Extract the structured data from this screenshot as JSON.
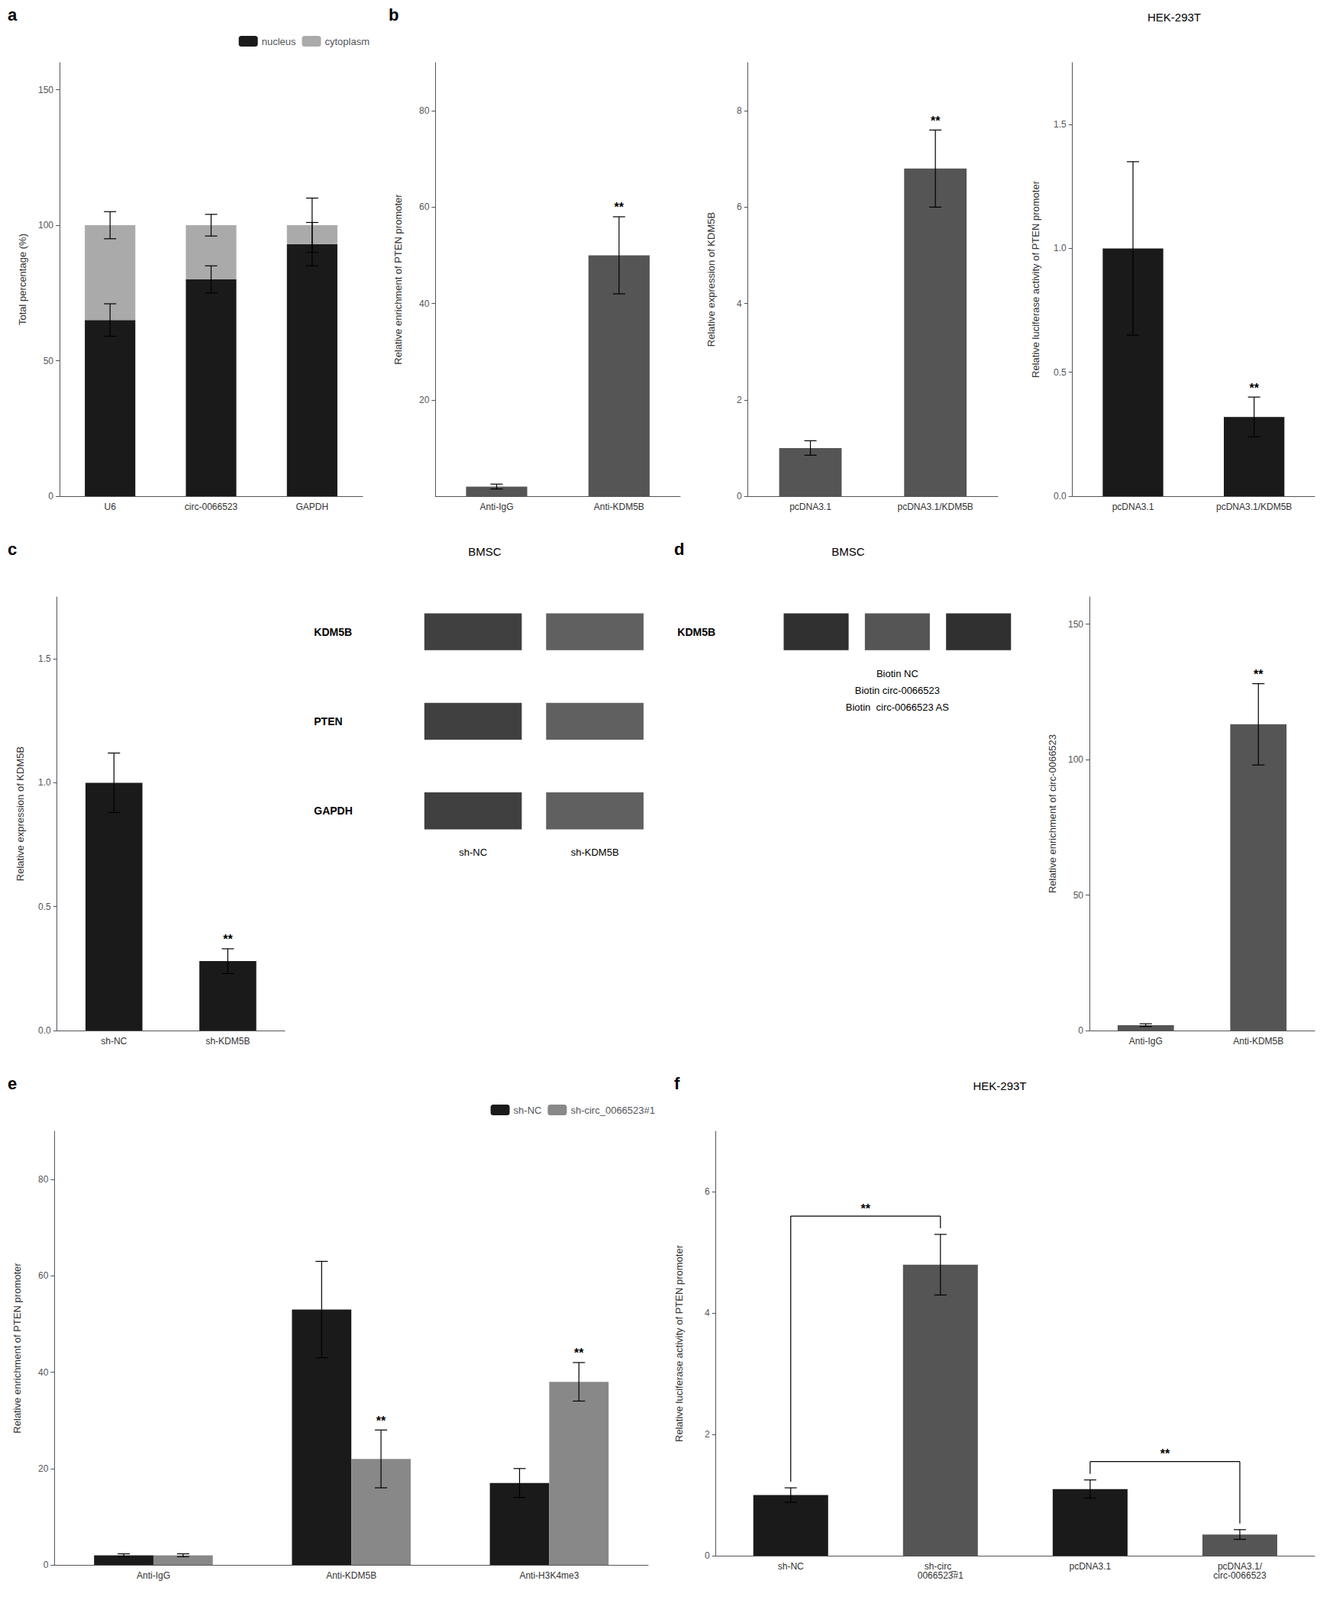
{
  "chart_data": [
    {
      "type": "bar",
      "stacked": true,
      "categories": [
        "U6",
        "circ-0066523",
        "GAPDH"
      ],
      "series": [
        {
          "name": "nucleus",
          "color": "#1a1a1a",
          "values": [
            65,
            80,
            93
          ],
          "errors": [
            6,
            5,
            8
          ]
        },
        {
          "name": "cytoplasm",
          "color": "#aaaaaa",
          "values": [
            35,
            20,
            7
          ],
          "errors": [
            5,
            4,
            10
          ]
        }
      ],
      "ylabel": "Total percentage (%)",
      "ylim": [
        0,
        160
      ],
      "yticks": [
        0,
        50,
        100,
        150
      ],
      "legend": "upper right",
      "grid": false,
      "annotations": [
        {
          "text": "a"
        }
      ]
    },
    {
      "type": "bar",
      "categories": [
        "Anti-IgG",
        "Anti-KDM5B"
      ],
      "values": [
        2.0,
        50.0
      ],
      "errors": [
        0.5,
        8.0
      ],
      "color": "#555555",
      "ylabel": "Relative enrichment of PTEN promoter",
      "ylim": [
        0,
        90
      ],
      "yticks": [
        20,
        40,
        60,
        80
      ],
      "grid": false,
      "annotations": [
        {
          "text": "b"
        },
        {
          "text": "**",
          "x": "Anti-KDM5B"
        }
      ]
    },
    {
      "type": "bar",
      "categories": [
        "pcDNA3.1",
        "pcDNA3.1/KDM5B"
      ],
      "values": [
        1.0,
        6.8
      ],
      "errors": [
        0.15,
        0.8
      ],
      "color": "#555555",
      "ylabel": "Relative expression of KDM5B",
      "ylim": [
        0,
        9
      ],
      "yticks": [
        0,
        2,
        4,
        6,
        8
      ],
      "grid": false,
      "annotations": [
        {
          "text": "**",
          "x": "pcDNA3.1/KDM5B"
        }
      ]
    },
    {
      "type": "bar",
      "title": "HEK-293T",
      "categories": [
        "pcDNA3.1",
        "pcDNA3.1/KDM5B"
      ],
      "values": [
        1.0,
        0.32
      ],
      "errors": [
        0.35,
        0.08
      ],
      "color": "#1a1a1a",
      "ylabel": "Relative luciferase activity of PTEN promoter",
      "ylim": [
        0,
        1.75
      ],
      "yticks": [
        {
          "value": 0,
          "label": "0.0"
        },
        0.5,
        {
          "value": 1,
          "label": "1.0"
        },
        1.5
      ],
      "grid": false,
      "annotations": [
        {
          "text": "**",
          "x": "pcDNA3.1/KDM5B"
        }
      ]
    },
    {
      "type": "bar",
      "categories": [
        "sh-NC",
        "sh-KDM5B"
      ],
      "values": [
        1.0,
        0.28
      ],
      "errors": [
        0.12,
        0.05
      ],
      "color": "#1a1a1a",
      "ylabel": "Relative expression of KDM5B",
      "ylim": [
        0,
        1.75
      ],
      "yticks": [
        {
          "value": 0,
          "label": "0.0"
        },
        0.5,
        {
          "value": 1,
          "label": "1.0"
        },
        1.5
      ],
      "grid": false,
      "annotations": [
        {
          "text": "c"
        },
        {
          "text": "**",
          "x": "sh-KDM5B"
        }
      ]
    },
    {
      "type": "blot",
      "title": "BMSC",
      "categories": [
        "sh-NC",
        "sh-KDM5B"
      ],
      "series": [
        {
          "name": "KDM5B",
          "colors": [
            "#404040",
            "#606060"
          ]
        },
        {
          "name": "PTEN",
          "colors": [
            "#404040",
            "#606060"
          ]
        },
        {
          "name": "GAPDH",
          "colors": [
            "#404040",
            "#606060"
          ]
        }
      ]
    },
    {
      "type": "blot",
      "title": "BMSC",
      "categories": [
        "Biotin NC",
        "Biotin circ-0066523",
        "Biotin  circ-0066523 AS"
      ],
      "series": [
        {
          "name": "KDM5B",
          "colors": [
            "#303030",
            "#555555",
            "#303030"
          ]
        }
      ],
      "annotations": [
        {
          "text": "d"
        }
      ]
    },
    {
      "type": "bar",
      "categories": [
        "Anti-IgG",
        "Anti-KDM5B"
      ],
      "values": [
        2.0,
        113.0
      ],
      "errors": [
        0.5,
        15.0
      ],
      "color": "#555555",
      "ylabel": "Relative enrichment of circ-0066523",
      "ylim": [
        0,
        160
      ],
      "yticks": [
        0,
        50,
        100,
        150
      ],
      "grid": false,
      "annotations": [
        {
          "text": "**",
          "x": "Anti-KDM5B"
        }
      ]
    },
    {
      "type": "bar",
      "categories": [
        "Anti-IgG",
        "Anti-KDM5B",
        "Anti-H3K4me3"
      ],
      "series": [
        {
          "name": "sh-NC",
          "color": "#1a1a1a",
          "values": [
            2.0,
            53.0,
            17.0
          ],
          "errors": [
            0.3,
            10.0,
            3.0
          ]
        },
        {
          "name": "sh-circ_0066523#1",
          "color": "#888888",
          "values": [
            2.0,
            22.0,
            38.0
          ],
          "errors": [
            0.3,
            6.0,
            4.0
          ]
        }
      ],
      "ylabel": "Relative enrichment of PTEN promoter",
      "ylim": [
        0,
        90
      ],
      "yticks": [
        0,
        20,
        40,
        60,
        80
      ],
      "legend": "upper right",
      "grid": false,
      "annotations": [
        {
          "text": "e"
        },
        {
          "text": "**",
          "x": "Anti-KDM5B",
          "series": "sh-circ_0066523#1"
        },
        {
          "text": "**",
          "x": "Anti-H3K4me3",
          "series": "sh-circ_0066523#1"
        }
      ]
    },
    {
      "type": "bar",
      "title": "HEK-293T",
      "categories": [
        "sh-NC",
        "sh-circ_\n0066523#1",
        "pcDNA3.1",
        "pcDNA3.1/\ncirc-0066523"
      ],
      "values": [
        1.0,
        4.8,
        1.1,
        0.35
      ],
      "errors": [
        0.12,
        0.5,
        0.15,
        0.08
      ],
      "colors": [
        "#1a1a1a",
        "#555555",
        "#1a1a1a",
        "#555555"
      ],
      "ylabel": "Relative luciferase activity of PTEN promoter",
      "ylim": [
        0,
        7
      ],
      "yticks": [
        0,
        2,
        4,
        6
      ],
      "grid": false,
      "annotations": [
        {
          "text": "f"
        },
        {
          "text": "**",
          "x": [
            "sh-NC",
            "sh-circ_\n0066523#1"
          ]
        },
        {
          "text": "**",
          "x": [
            "pcDNA3.1",
            "pcDNA3.1/\ncirc-0066523"
          ]
        }
      ]
    }
  ]
}
